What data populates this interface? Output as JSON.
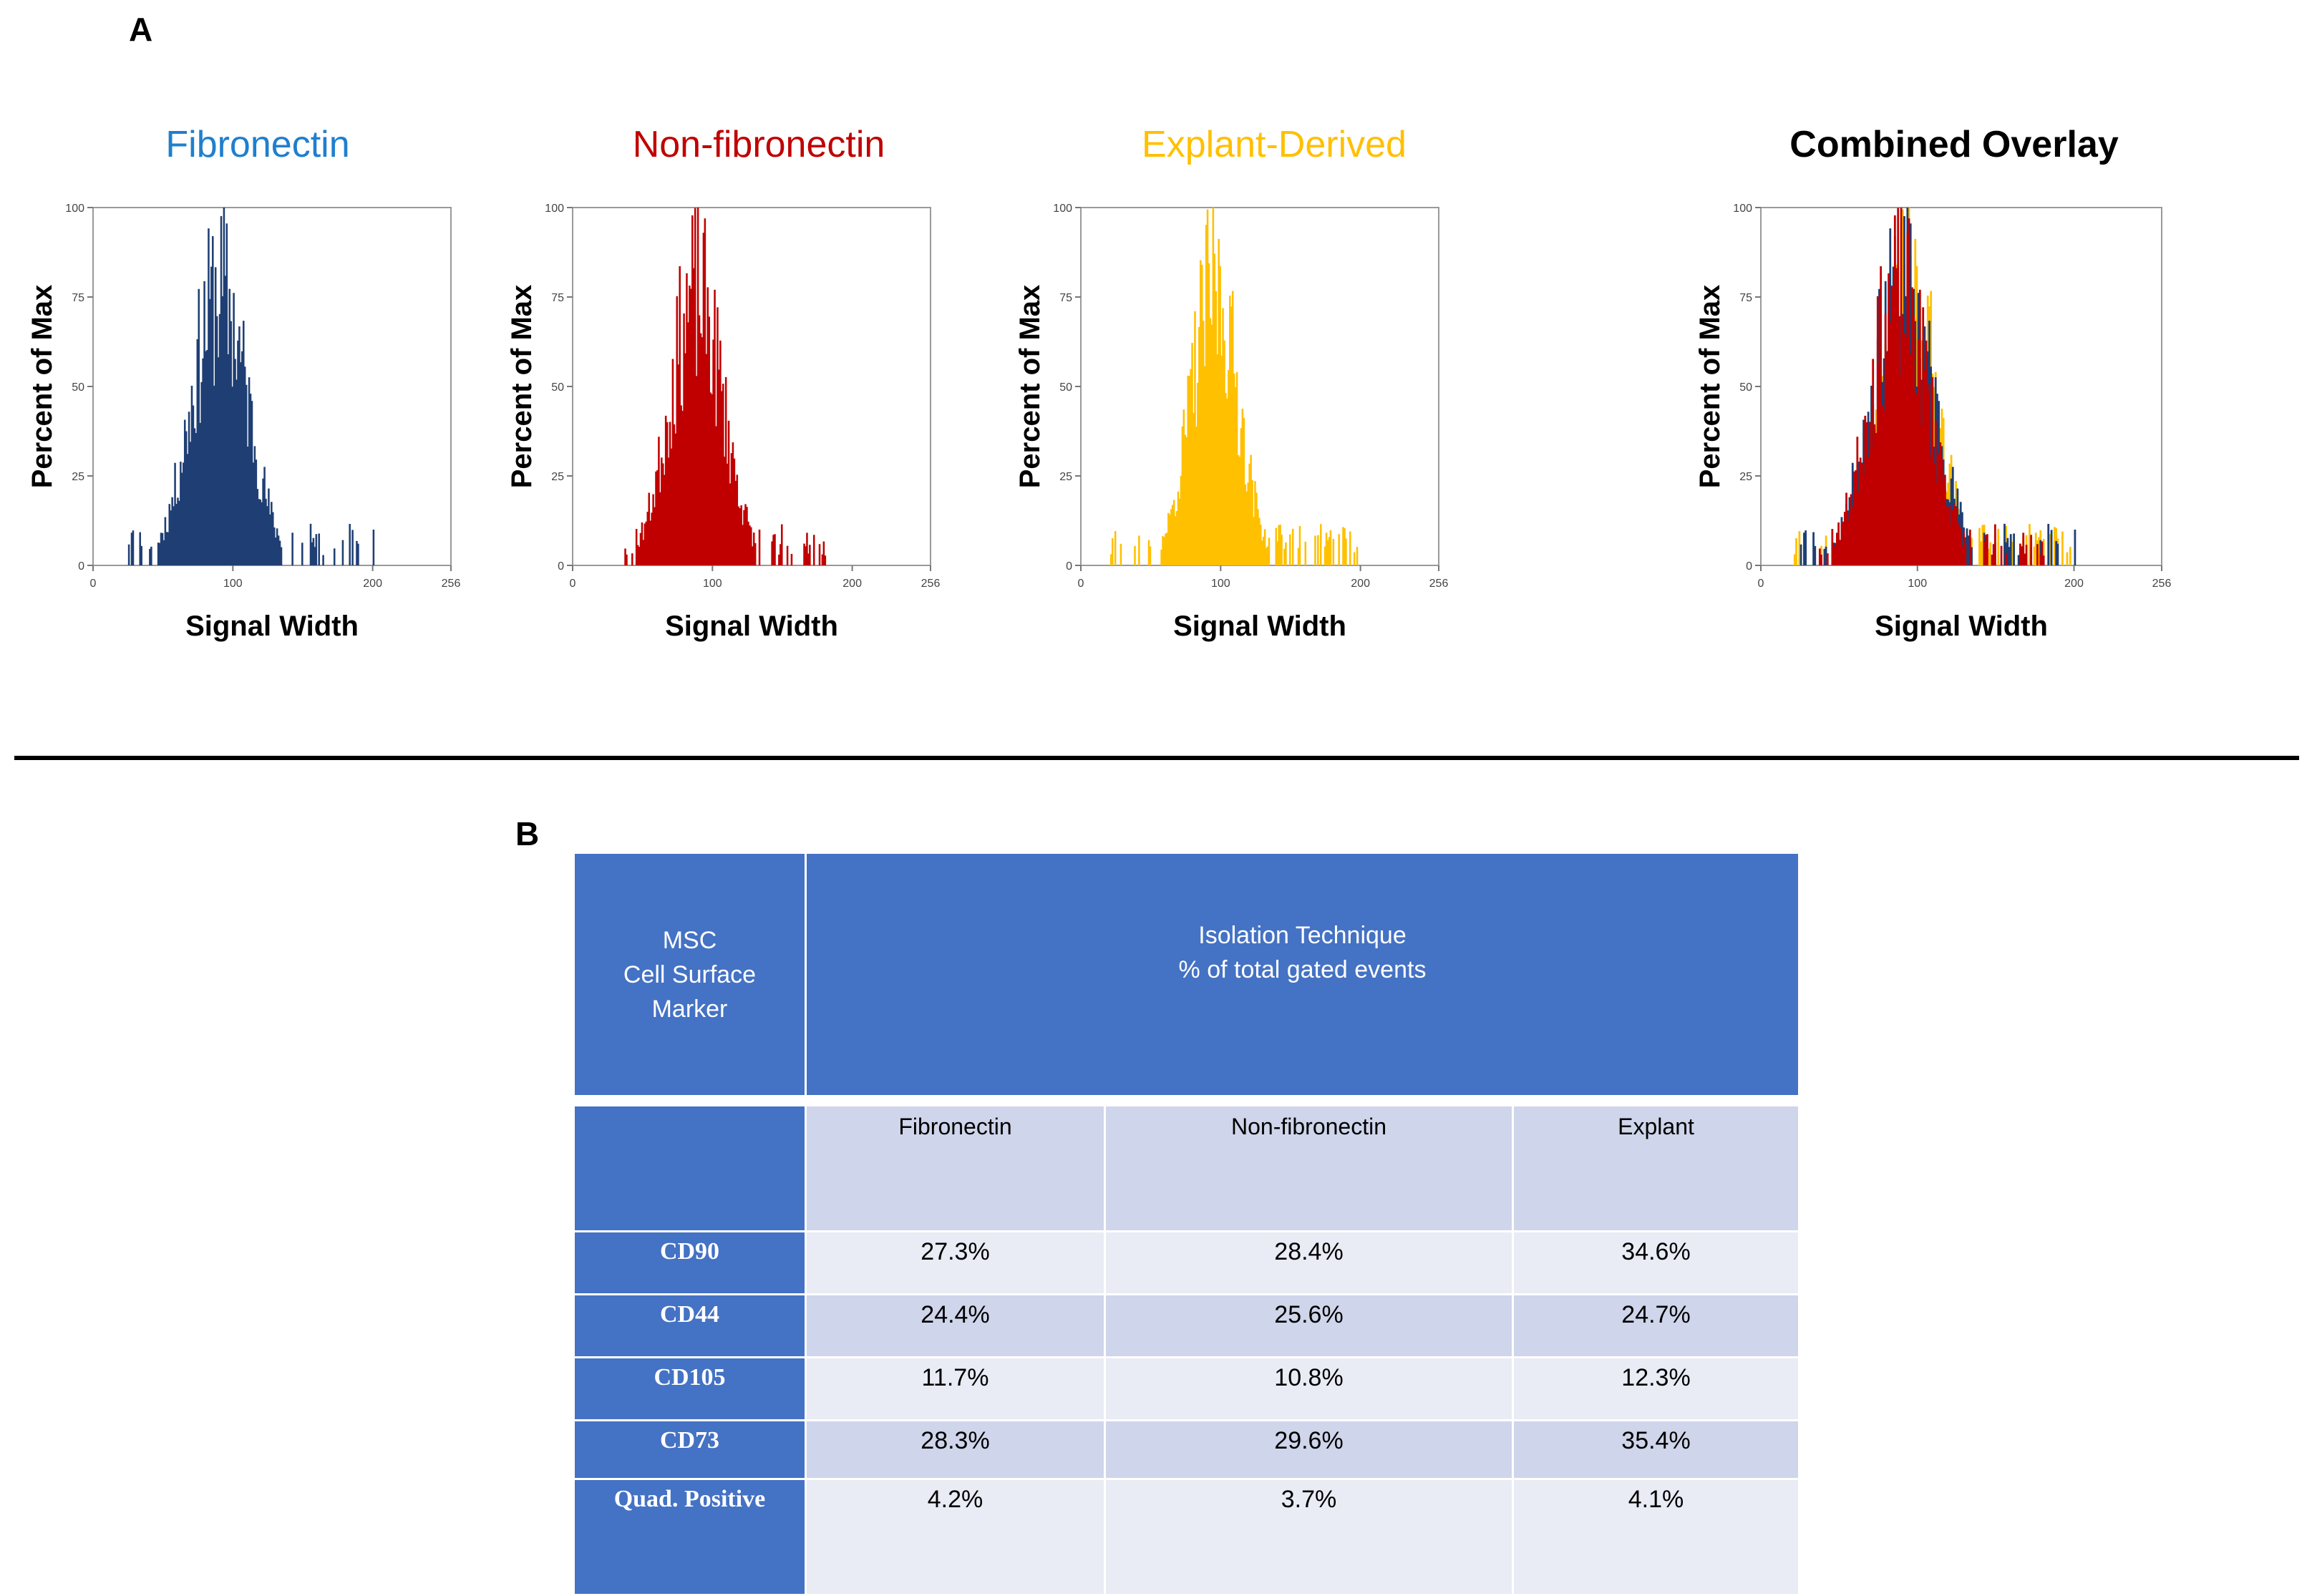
{
  "panel_a_label": "A",
  "panel_b_label": "B",
  "chart_data": [
    {
      "type": "histogram",
      "title": "Fibronectin",
      "title_color": "#1f7fce",
      "xlabel": "Signal Width",
      "ylabel": "Percent of Max",
      "xlim": [
        0,
        256
      ],
      "ylim": [
        0,
        100
      ],
      "xticks": [
        "0",
        "100",
        "200",
        "256"
      ],
      "yticks": [
        "0",
        "25",
        "50",
        "75",
        "100"
      ],
      "series": [
        {
          "name": "Fibronectin",
          "color": "#1f3f74",
          "center": 90,
          "spread": 20,
          "peak": 100,
          "min_x": 25,
          "max_x": 200,
          "seed": 11
        }
      ]
    },
    {
      "type": "histogram",
      "title": "Non-fibronectin",
      "title_color": "#c00000",
      "xlabel": "Signal Width",
      "ylabel": "Percent of Max",
      "xlim": [
        0,
        256
      ],
      "ylim": [
        0,
        100
      ],
      "xticks": [
        "0",
        "100",
        "200",
        "256"
      ],
      "yticks": [
        "0",
        "25",
        "50",
        "75",
        "100"
      ],
      "series": [
        {
          "name": "Non-fibronectin",
          "color": "#c00000",
          "center": 88,
          "spread": 19,
          "peak": 100,
          "min_x": 30,
          "max_x": 180,
          "seed": 23
        }
      ]
    },
    {
      "type": "histogram",
      "title": "Explant-Derived",
      "title_color": "#ffc000",
      "xlabel": "Signal Width",
      "ylabel": "Percent of Max",
      "xlim": [
        0,
        256
      ],
      "ylim": [
        0,
        100
      ],
      "xticks": [
        "0",
        "100",
        "200",
        "256"
      ],
      "yticks": [
        "0",
        "25",
        "50",
        "75",
        "100"
      ],
      "series": [
        {
          "name": "Explant-Derived",
          "color": "#ffc000",
          "center": 95,
          "spread": 17,
          "peak": 100,
          "min_x": 20,
          "max_x": 200,
          "seed": 37
        }
      ]
    },
    {
      "type": "histogram",
      "title": "Combined Overlay",
      "title_color": "#000000",
      "xlabel": "Signal Width",
      "ylabel": "Percent of Max",
      "xlim": [
        0,
        256
      ],
      "ylim": [
        0,
        100
      ],
      "xticks": [
        "0",
        "100",
        "200",
        "256"
      ],
      "yticks": [
        "0",
        "25",
        "50",
        "75",
        "100"
      ],
      "series": [
        {
          "name": "Explant-Derived",
          "color": "#ffc000",
          "center": 95,
          "spread": 17,
          "peak": 100,
          "min_x": 20,
          "max_x": 200,
          "seed": 37
        },
        {
          "name": "Fibronectin",
          "color": "#1f3f74",
          "center": 90,
          "spread": 20,
          "peak": 100,
          "min_x": 25,
          "max_x": 200,
          "seed": 11
        },
        {
          "name": "Non-fibronectin",
          "color": "#c00000",
          "center": 88,
          "spread": 19,
          "peak": 100,
          "min_x": 30,
          "max_x": 180,
          "seed": 23
        }
      ]
    }
  ],
  "table": {
    "header_col1": [
      "MSC",
      "Cell Surface",
      "Marker"
    ],
    "header_col2": [
      "Isolation Technique",
      "% of total gated events"
    ],
    "columns": [
      "Fibronectin",
      "Non-fibronectin",
      "Explant"
    ],
    "rows": [
      {
        "label": "CD90",
        "values": [
          "27.3%",
          "28.4%",
          "34.6%"
        ]
      },
      {
        "label": "CD44",
        "values": [
          "24.4%",
          "25.6%",
          "24.7%"
        ]
      },
      {
        "label": "CD105",
        "values": [
          "11.7%",
          "10.8%",
          "12.3%"
        ]
      },
      {
        "label": "CD73",
        "values": [
          "28.3%",
          "29.6%",
          "35.4%"
        ]
      },
      {
        "label": "Quad. Positive",
        "values": [
          "4.2%",
          "3.7%",
          "4.1%"
        ]
      }
    ]
  }
}
